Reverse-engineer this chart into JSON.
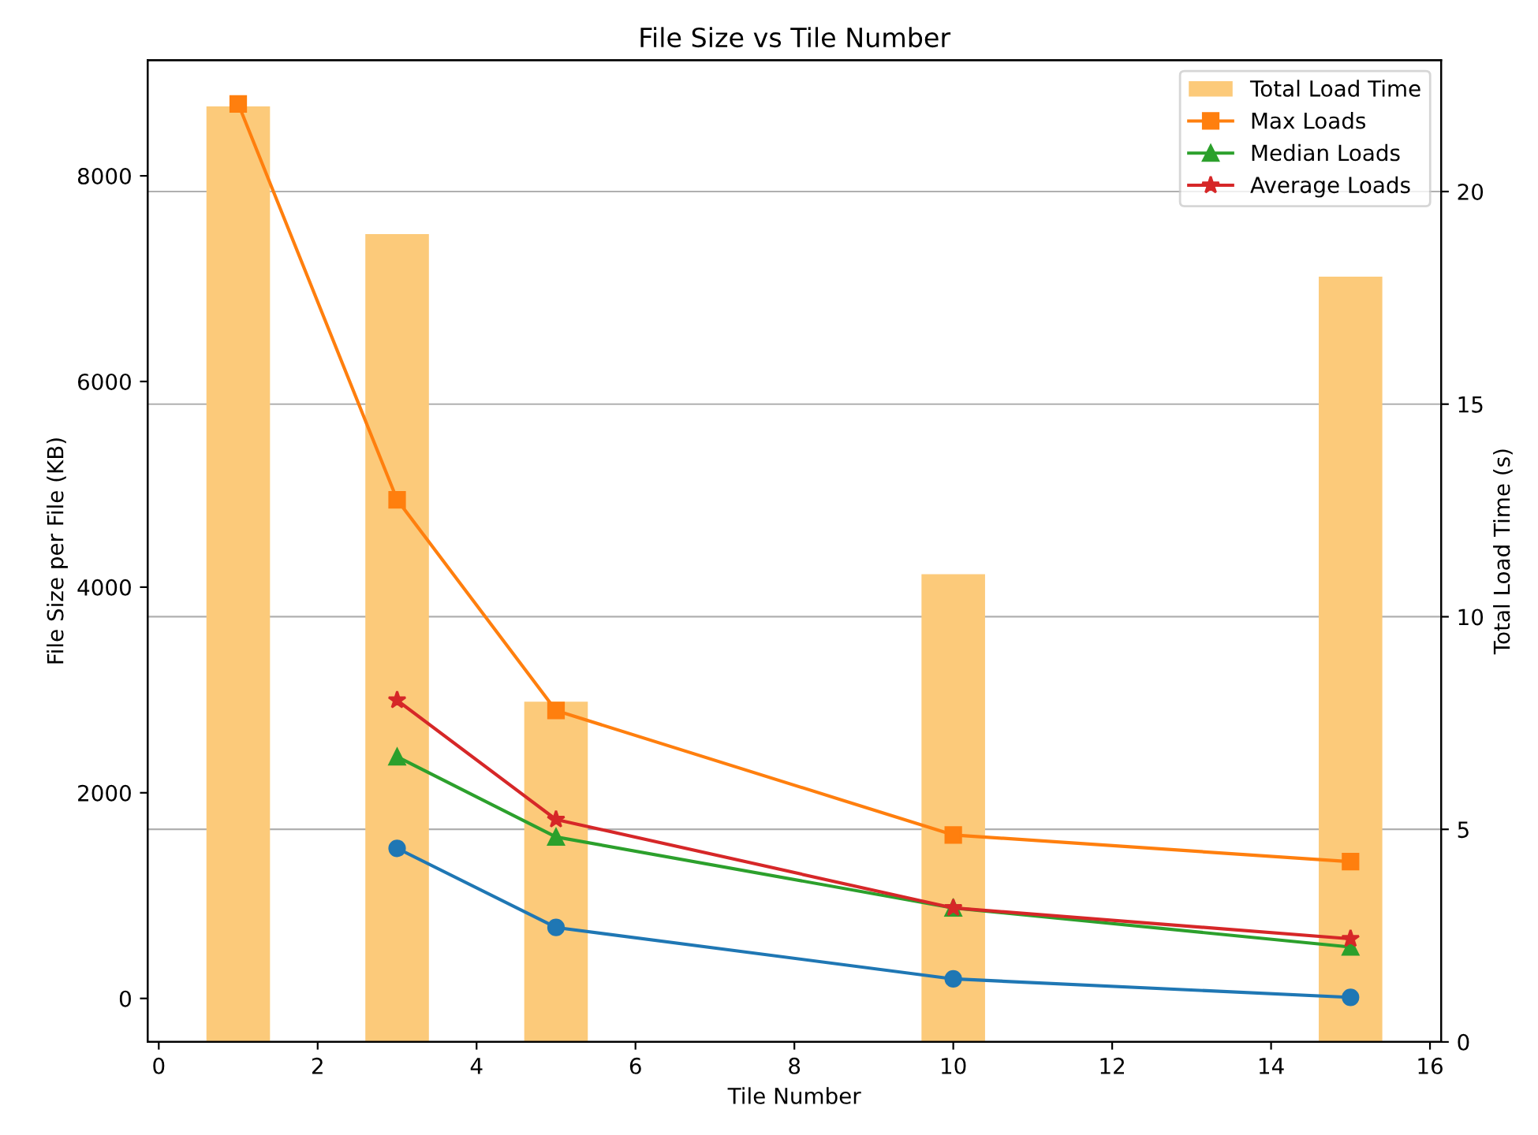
{
  "chart_data": {
    "type": "line",
    "title": "File Size vs Tile Number",
    "xlabel": "Tile Number",
    "ylabel": "File Size per File (KB)",
    "y2label": "Total Load Time (s)",
    "xlim": [
      -0.14,
      16.14
    ],
    "xticks": [
      0,
      2,
      4,
      6,
      8,
      10,
      12,
      14,
      16
    ],
    "ylim": [
      -423,
      9125
    ],
    "yticks": [
      0,
      2000,
      4000,
      6000,
      8000
    ],
    "y2lim": [
      0,
      23.09
    ],
    "y2ticks": [
      0,
      5,
      10,
      15,
      20
    ],
    "grid": "y2",
    "legend": "top right",
    "series": [
      {
        "name": "Total Load Time",
        "type": "bar",
        "axis": "y2",
        "color": "#fcca7a",
        "x": [
          1,
          3,
          5,
          10,
          15
        ],
        "values": [
          22,
          19,
          8,
          11,
          18
        ]
      },
      {
        "marker": "circle",
        "color": "#1f77b4",
        "x": [
          3,
          5,
          10,
          15
        ],
        "values": [
          1460,
          690,
          190,
          10
        ]
      },
      {
        "name": "Max Loads",
        "marker": "square",
        "color": "#ff7f0e",
        "x": [
          1,
          3,
          5,
          10,
          15
        ],
        "values": [
          8700,
          4850,
          2800,
          1590,
          1330
        ]
      },
      {
        "name": "Median Loads",
        "marker": "triangle",
        "color": "#2ca02c",
        "x": [
          3,
          5,
          10,
          15
        ],
        "values": [
          2350,
          1570,
          880,
          500
        ]
      },
      {
        "name": "Average Loads",
        "marker": "star",
        "color": "#d62728",
        "x": [
          3,
          5,
          10,
          15
        ],
        "values": [
          2900,
          1740,
          880,
          580
        ]
      }
    ]
  }
}
